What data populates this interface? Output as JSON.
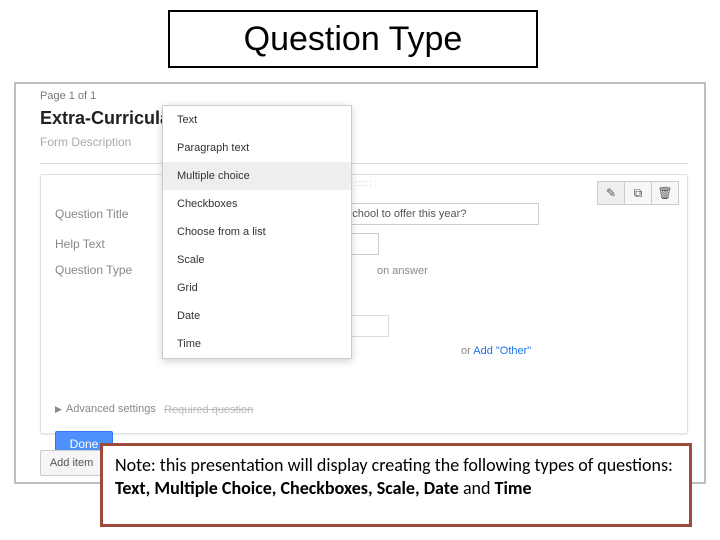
{
  "slide": {
    "title": "Question Type",
    "title_box": {
      "border_color": "#000000",
      "bg": "#ffffff",
      "font_size": 34
    }
  },
  "app": {
    "page_indicator": "Page 1 of 1",
    "form_title": "Extra-Curricular Activities Survey",
    "form_description_placeholder": "Form Description",
    "frame_border": "#bfbfbf"
  },
  "question_panel": {
    "drag_handle": ":::::",
    "toolbar": {
      "edit_icon": "✎",
      "duplicate_icon": "⧉",
      "delete_icon": "🗑"
    },
    "rows": {
      "question_title_label": "Question Title",
      "question_title_value": "Which activity would you like the school to offer this year?",
      "help_text_label": "Help Text",
      "help_text_value": "",
      "question_type_label": "Question Type"
    },
    "hint_answer_suffix": "on answer",
    "add_other": {
      "or": "or ",
      "link": "Add \"Other\""
    },
    "advanced_label": "Advanced settings",
    "done_label": "Done",
    "done_btn": {
      "bg": "#4d90fe",
      "border": "#3079ed",
      "color": "#ffffff"
    },
    "required_ghost": "Required question"
  },
  "dropdown": {
    "items": [
      "Text",
      "Paragraph text",
      "Multiple choice",
      "Checkboxes",
      "Choose from a list",
      "Scale",
      "Grid",
      "Date",
      "Time"
    ],
    "selected_index": 2,
    "bg": "#ffffff",
    "border": "#cccccc",
    "selected_bg": "#eeeeee"
  },
  "add_item": {
    "label": "Add item",
    "caret": "▼"
  },
  "note": {
    "prefix": "Note: this presentation will display creating the following types of questions: ",
    "bold1": "Text, Multiple Choice, Checkboxes, Scale, Date ",
    "mid": "and ",
    "bold2": "Time",
    "border_color": "#9c4a3c",
    "bg": "#ffffff",
    "font_size": 18
  }
}
